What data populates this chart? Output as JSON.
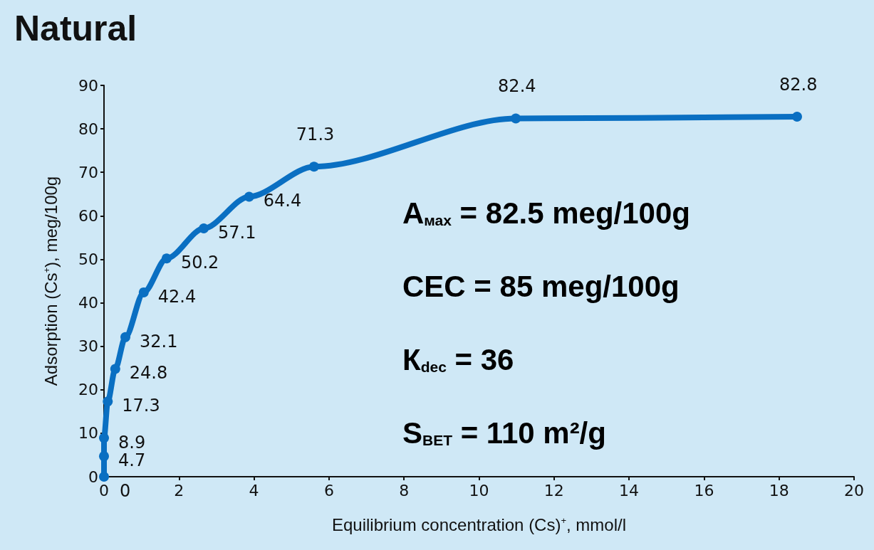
{
  "chart_data": {
    "type": "line",
    "title": "Natural",
    "xlabel": "Equilibrium concentration (Cs)$^{+}$, mmol/l",
    "ylabel": "Adsorption (Cs$^{+}$), meg/100g",
    "x": [
      0,
      0,
      0,
      0.1,
      0.3,
      0.57,
      1.06,
      1.67,
      2.66,
      3.87,
      5.6,
      10.98,
      18.48
    ],
    "series": [
      {
        "color": "#0a6fc2",
        "values": [
          0,
          4.7,
          8.9,
          17.3,
          24.8,
          32.1,
          42.4,
          50.2,
          57.1,
          64.4,
          71.3,
          82.4,
          82.8
        ]
      }
    ],
    "xlim": [
      0,
      20
    ],
    "xticks": [
      0,
      2,
      4,
      6,
      8,
      10,
      12,
      14,
      16,
      18,
      20
    ],
    "ylim": [
      0,
      90
    ],
    "yticks": [
      0,
      10,
      20,
      30,
      40,
      50,
      60,
      70,
      80,
      90
    ],
    "grid": false,
    "marker": "circle",
    "line_style": "solid",
    "data_labels": true,
    "annotations": [
      "A$_{мах}$ = 82.5 meg/100g",
      "CEC = 85 meg/100g",
      "К$_{dec}$ = 36",
      "S$_{BET}$ = 110 m²/g"
    ]
  }
}
